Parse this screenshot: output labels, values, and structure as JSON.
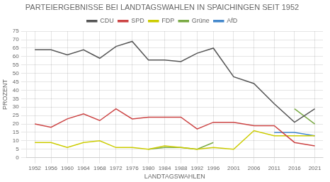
{
  "chart_data": {
    "type": "line",
    "title": "PARTEIERGEBNISSE BEI LANDTAGSWAHLEN IN SPAICHINGEN SEIT 1952",
    "xlabel": "LANDTAGSWAHLEN",
    "ylabel": "PROZENT",
    "x": [
      1952,
      1956,
      1960,
      1964,
      1968,
      1972,
      1976,
      1980,
      1984,
      1988,
      1992,
      1996,
      2001,
      2006,
      2011,
      2016,
      2021
    ],
    "series": [
      {
        "name": "CDU",
        "color": "#555555",
        "values": [
          64,
          64,
          61,
          64,
          59,
          66,
          69,
          58,
          58,
          57,
          62,
          65,
          48,
          44,
          32,
          21,
          29
        ]
      },
      {
        "name": "SPD",
        "color": "#cc4444",
        "values": [
          20,
          18,
          23,
          26,
          22,
          29,
          23,
          24,
          24,
          24,
          17,
          21,
          21,
          19,
          19,
          9,
          7
        ]
      },
      {
        "name": "FDP",
        "color": "#cccc00",
        "values": [
          9,
          9,
          6,
          9,
          10,
          6,
          6,
          5,
          7,
          6,
          5,
          6,
          5,
          16,
          13,
          13,
          13
        ]
      },
      {
        "name": "Grüne",
        "color": "#7aaa44",
        "values": [
          null,
          null,
          null,
          null,
          null,
          null,
          null,
          5,
          6,
          6,
          5,
          9,
          null,
          null,
          null,
          29,
          20
        ]
      },
      {
        "name": "AfD",
        "color": "#4488cc",
        "values": [
          null,
          null,
          null,
          null,
          null,
          null,
          null,
          null,
          null,
          null,
          null,
          null,
          null,
          null,
          15,
          15,
          13
        ]
      }
    ],
    "xlim": [
      1950,
      2023
    ],
    "xticks": [
      1952,
      1956,
      1960,
      1964,
      1968,
      1972,
      1976,
      1980,
      1984,
      1988,
      1992,
      1996,
      2001,
      2006,
      2011,
      2016,
      2021
    ],
    "ylim": [
      0,
      75
    ],
    "yticks": [
      0,
      5,
      10,
      15,
      20,
      25,
      30,
      35,
      40,
      45,
      50,
      55,
      60,
      65,
      70,
      75
    ],
    "grid": true,
    "legend": "top"
  }
}
